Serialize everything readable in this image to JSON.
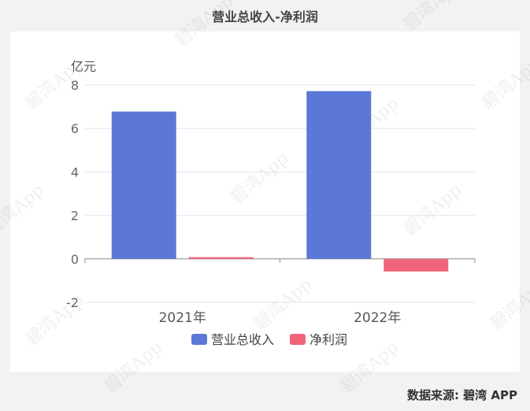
{
  "title": "营业总收入-净利润",
  "source": "数据来源: 碧湾 APP",
  "watermark": "碧湾App",
  "chart_data": {
    "type": "bar",
    "title": "营业总收入-净利润",
    "unit_label": "亿元",
    "categories": [
      "2021年",
      "2022年"
    ],
    "series": [
      {
        "name": "营业总收入",
        "color": "#5b78d6",
        "values": [
          6.78,
          7.72
        ]
      },
      {
        "name": "净利润",
        "color": "#f0647a",
        "values": [
          0.08,
          -0.58
        ]
      }
    ],
    "ylim": [
      -2,
      8
    ],
    "yticks": [
      -2,
      0,
      2,
      4,
      6,
      8
    ],
    "grid": true,
    "legend_position": "bottom"
  }
}
